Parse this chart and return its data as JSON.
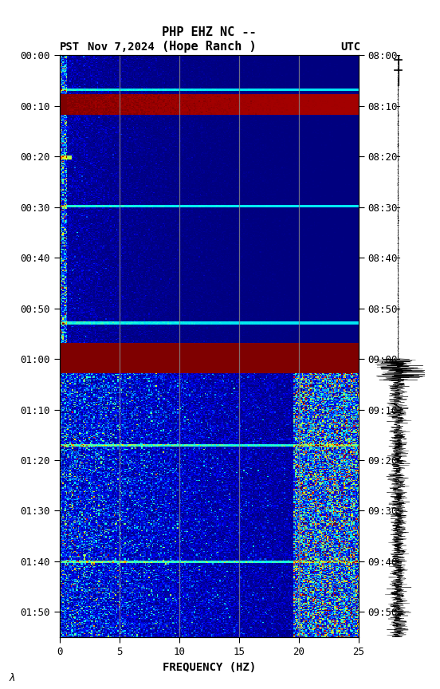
{
  "title_line1": "PHP EHZ NC --",
  "title_line2": "(Hope Ranch )",
  "date_label": "Nov 7,2024",
  "left_time_label": "PST",
  "right_time_label": "UTC",
  "left_times": [
    "00:00",
    "00:10",
    "00:20",
    "00:30",
    "00:40",
    "00:50",
    "01:00",
    "01:10",
    "01:20",
    "01:30",
    "01:40",
    "01:50"
  ],
  "right_times": [
    "08:00",
    "08:10",
    "08:20",
    "08:30",
    "08:40",
    "08:50",
    "09:00",
    "09:10",
    "09:20",
    "09:30",
    "09:40",
    "09:50"
  ],
  "time_tick_vals": [
    0,
    10,
    20,
    30,
    40,
    50,
    60,
    70,
    80,
    90,
    100,
    110
  ],
  "freq_ticks": [
    0,
    5,
    10,
    15,
    20,
    25
  ],
  "freq_label": "FREQUENCY (HZ)",
  "freq_min": 0,
  "freq_max": 25,
  "time_min": 0,
  "time_max": 115,
  "transition_time": 60,
  "grid_freqs": [
    5,
    10,
    15,
    20
  ],
  "background_color": "#ffffff"
}
